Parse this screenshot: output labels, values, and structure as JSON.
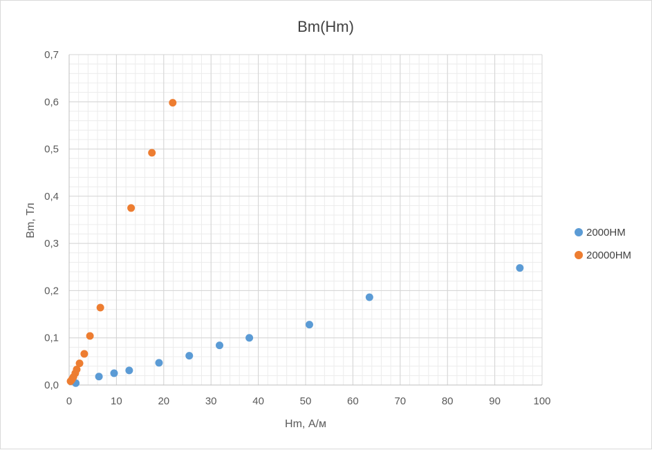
{
  "chart_data": {
    "type": "scatter",
    "title": "Bm(Hm)",
    "xlabel": "Hm, А/м",
    "ylabel": "Bm, Тл",
    "xlim": [
      0,
      100
    ],
    "ylim": [
      0,
      0.7
    ],
    "x_ticks": [
      "0",
      "10",
      "20",
      "30",
      "40",
      "50",
      "60",
      "70",
      "80",
      "90",
      "100"
    ],
    "y_ticks": [
      "0,0",
      "0,1",
      "0,2",
      "0,3",
      "0,4",
      "0,5",
      "0,6",
      "0,7"
    ],
    "x_tick_values": [
      0,
      10,
      20,
      30,
      40,
      50,
      60,
      70,
      80,
      90,
      100
    ],
    "y_tick_values": [
      0,
      0.1,
      0.2,
      0.3,
      0.4,
      0.5,
      0.6,
      0.7
    ],
    "grid": true,
    "legend_position": "right",
    "series": [
      {
        "name": "2000НМ",
        "color": "#5b9bd5",
        "x": [
          1.4,
          6.3,
          9.5,
          12.7,
          19.0,
          25.4,
          31.8,
          38.1,
          50.8,
          63.5,
          95.3
        ],
        "y": [
          0.004,
          0.018,
          0.025,
          0.031,
          0.047,
          0.062,
          0.084,
          0.1,
          0.128,
          0.186,
          0.248
        ]
      },
      {
        "name": "20000НМ",
        "color": "#ed7d31",
        "x": [
          0.3,
          0.6,
          0.9,
          1.3,
          1.6,
          2.2,
          3.2,
          4.4,
          6.6,
          13.1,
          17.5,
          21.9
        ],
        "y": [
          0.008,
          0.012,
          0.017,
          0.025,
          0.033,
          0.046,
          0.066,
          0.104,
          0.164,
          0.375,
          0.492,
          0.598
        ]
      }
    ]
  }
}
